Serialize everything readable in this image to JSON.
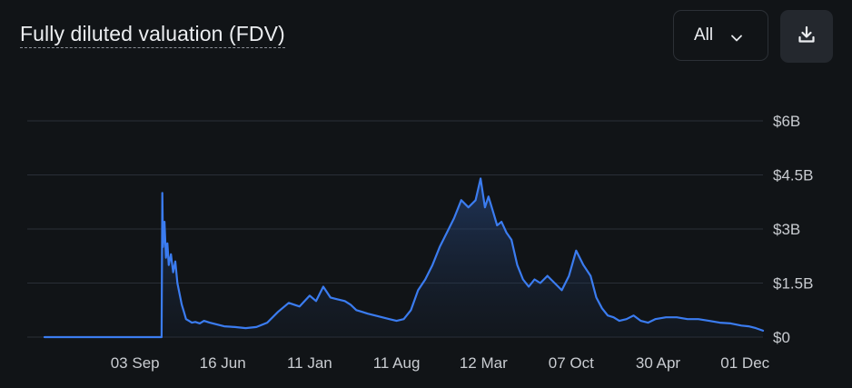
{
  "header": {
    "title": "Fully diluted valuation (FDV)",
    "range_label": "All",
    "range_icon": "chevron-down-icon",
    "download_icon": "download-icon"
  },
  "colors": {
    "line": "#3b7cf0",
    "grid": "#2a2f37",
    "background": "#111417"
  },
  "chart_data": {
    "type": "area",
    "title": "Fully diluted valuation (FDV)",
    "xlabel": "",
    "ylabel": "",
    "ylim": [
      0,
      6
    ],
    "y_unit": "billion USD",
    "y_ticks": [
      0,
      1.5,
      3,
      4.5,
      6
    ],
    "y_tick_labels": [
      "$0",
      "$1.5B",
      "$3B",
      "$4.5B",
      "$6B"
    ],
    "x_tick_labels": [
      "03 Sep",
      "16 Jun",
      "11 Jan",
      "11 Aug",
      "12 Mar",
      "07 Oct",
      "30 Apr",
      "01 Dec"
    ],
    "xlim": [
      0,
      100
    ],
    "x_tick_positions": [
      12.6,
      24.8,
      36.9,
      49.0,
      61.1,
      73.3,
      85.4,
      97.5
    ],
    "grid": true,
    "legend": "none",
    "series": [
      {
        "name": "FDV",
        "x": [
          0,
          16.3,
          16.4,
          16.5,
          16.7,
          16.9,
          17.1,
          17.3,
          17.6,
          17.9,
          18.2,
          18.5,
          18.8,
          19.1,
          19.4,
          19.7,
          20.1,
          20.5,
          21.0,
          21.6,
          22.2,
          23.0,
          24.0,
          25.0,
          26.5,
          28.0,
          29.5,
          31.0,
          32.5,
          34.0,
          35.5,
          36.9,
          37.8,
          38.8,
          39.8,
          40.8,
          41.8,
          42.6,
          43.4,
          44.2,
          45.0,
          46.0,
          47.0,
          48.0,
          49.0,
          50.0,
          51.0,
          52.0,
          53.0,
          54.0,
          55.0,
          56.0,
          57.0,
          58.0,
          59.0,
          60.0,
          60.7,
          61.3,
          61.8,
          62.4,
          63.0,
          63.6,
          64.3,
          65.0,
          65.8,
          66.6,
          67.4,
          68.2,
          69.0,
          70.0,
          71.0,
          72.0,
          73.0,
          74.0,
          75.0,
          76.0,
          76.8,
          77.6,
          78.4,
          79.2,
          80.0,
          81.0,
          82.0,
          83.0,
          84.0,
          85.0,
          86.5,
          88.0,
          89.5,
          91.0,
          92.5,
          94.0,
          95.5,
          97.0,
          98.0,
          99.0,
          100.0
        ],
        "values": [
          0,
          0,
          4.0,
          2.5,
          3.2,
          2.2,
          2.6,
          2.0,
          2.3,
          1.8,
          2.1,
          1.5,
          1.2,
          0.9,
          0.7,
          0.5,
          0.45,
          0.4,
          0.42,
          0.38,
          0.45,
          0.4,
          0.35,
          0.3,
          0.28,
          0.25,
          0.28,
          0.4,
          0.7,
          0.95,
          0.85,
          1.15,
          1.0,
          1.4,
          1.1,
          1.05,
          1.0,
          0.9,
          0.75,
          0.7,
          0.65,
          0.6,
          0.55,
          0.5,
          0.45,
          0.5,
          0.75,
          1.3,
          1.6,
          2.0,
          2.5,
          2.9,
          3.3,
          3.8,
          3.6,
          3.8,
          4.4,
          3.6,
          3.9,
          3.5,
          3.1,
          3.2,
          2.9,
          2.7,
          2.0,
          1.6,
          1.4,
          1.6,
          1.5,
          1.7,
          1.5,
          1.3,
          1.7,
          2.4,
          2.0,
          1.7,
          1.1,
          0.8,
          0.6,
          0.55,
          0.45,
          0.5,
          0.6,
          0.45,
          0.4,
          0.5,
          0.55,
          0.55,
          0.5,
          0.5,
          0.45,
          0.4,
          0.38,
          0.32,
          0.3,
          0.25,
          0.18
        ]
      }
    ]
  }
}
